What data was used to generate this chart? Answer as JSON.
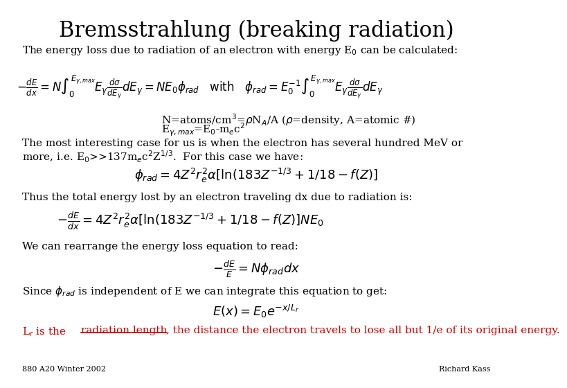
{
  "title": "Bremsstrahlung (breaking radiation)",
  "background_color": "#ffffff",
  "title_fontsize": 22,
  "body_fontsize": 11,
  "text_color": "#000000",
  "red_color": "#cc0000",
  "footer_left": "880 A20 Winter 2002",
  "footer_right": "Richard Kass",
  "line1": "The energy loss due to radiation of an electron with energy E$_0$ can be calculated:",
  "line2": "The most interesting case for us is when the electron has several hundred MeV or",
  "line3": "more, i.e. E$_0$>>137m$_e$c$^2$Z$^{1/3}$.  For this case we have:",
  "line4": "Thus the total energy lost by an electron traveling dx due to radiation is:",
  "line5": "We can rearrange the energy loss equation to read:",
  "line6": "Since $\\phi_{rad}$ is independent of E we can integrate this equation to get:",
  "note1": "N=atoms/cm$^3$=$\\rho$N$_A$/A ($\\rho$=density, A=atomic #)",
  "note2": "E$_{\\gamma,max}$=E$_0$-m$_e$c$^2$",
  "last_line_prefix": "L$_r$ is the ",
  "last_line_underline": "radiation length",
  "last_line_rest": ", the distance the electron travels to lose all but 1/e of its original energy."
}
